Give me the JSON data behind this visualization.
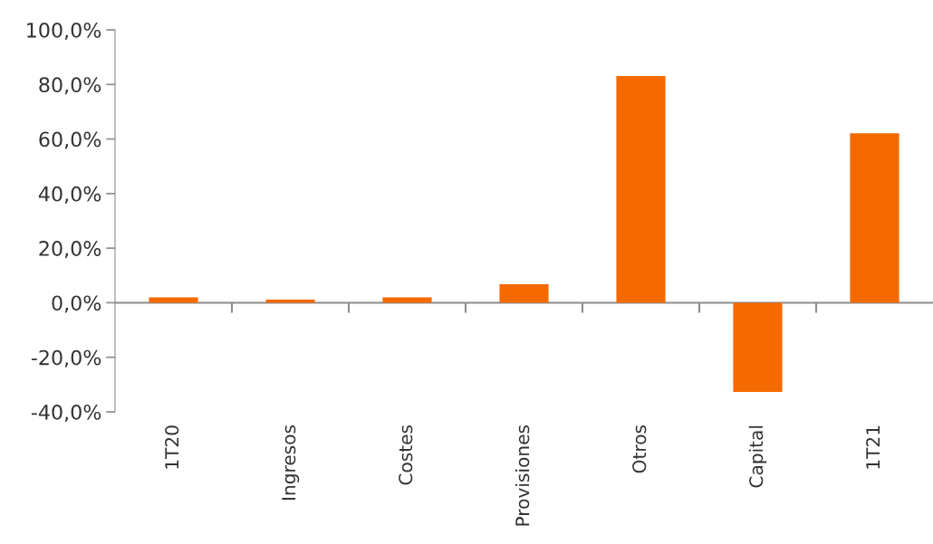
{
  "chart_data": {
    "type": "bar",
    "categories": [
      "1T20",
      "Ingresos",
      "Costes",
      "Provisiones",
      "Otros",
      "Capital",
      "1T21"
    ],
    "values": [
      2.0,
      1.1,
      2.0,
      6.8,
      83.1,
      -32.7,
      62.1
    ],
    "color": "#f46a00",
    "ylim": [
      -40,
      100
    ],
    "yticks": [
      {
        "value": -40,
        "label": "-40,0%"
      },
      {
        "value": -20,
        "label": "-20,0%"
      },
      {
        "value": 0,
        "label": "0,0%"
      },
      {
        "value": 20,
        "label": "20,0%"
      },
      {
        "value": 40,
        "label": "40,0%"
      },
      {
        "value": 60,
        "label": "60,0%"
      },
      {
        "value": 80,
        "label": "80,0%"
      },
      {
        "value": 100,
        "label": "100,0%"
      }
    ],
    "legend": false
  }
}
